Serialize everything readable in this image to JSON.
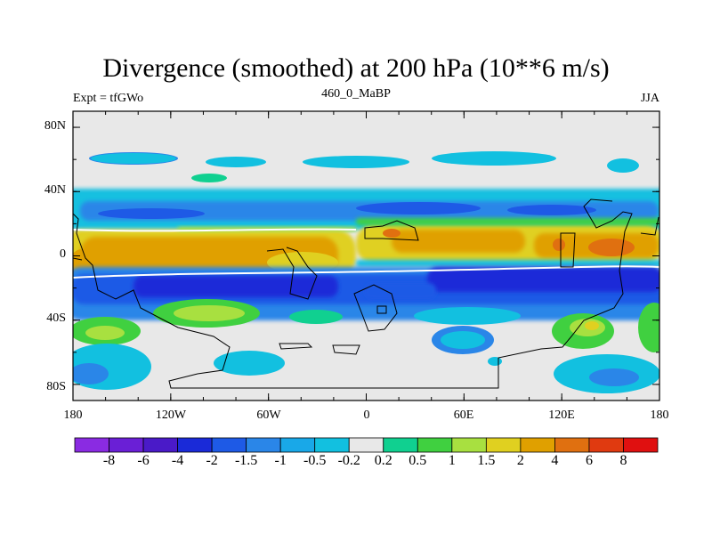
{
  "title": "Divergence (smoothed) at 200 hPa (10**6 m/s)",
  "subtitle_left": "Expt = tfGWo",
  "subtitle_center": "460_0_MaBP",
  "subtitle_right": "JJA",
  "chart_data": {
    "type": "filled-contour map",
    "variable": "Divergence (smoothed) at 200 hPa",
    "units": "10**6 m/s",
    "experiment": "tfGWo",
    "period": "460_0_MaBP",
    "season": "JJA",
    "x_axis": {
      "range": [
        -180,
        180
      ],
      "ticks": [
        -180,
        -120,
        -60,
        0,
        60,
        120,
        180
      ],
      "tick_labels": [
        "180",
        "120W",
        "60W",
        "0",
        "60E",
        "120E",
        "180"
      ]
    },
    "y_axis": {
      "range": [
        -90,
        90
      ],
      "ticks": [
        80,
        40,
        0,
        -40,
        -80
      ],
      "tick_labels": [
        "80N",
        "40N",
        "0",
        "40S",
        "80S"
      ]
    },
    "colorbar": {
      "levels": [
        "-8",
        "-6",
        "-4",
        "-2",
        "-1.5",
        "-1",
        "-0.5",
        "-0.2",
        "0.2",
        "0.5",
        "1",
        "1.5",
        "2",
        "4",
        "6",
        "8"
      ],
      "colors": [
        "#8a2be2",
        "#6a1fd6",
        "#4a1ac8",
        "#1a2ad8",
        "#1e5ae6",
        "#2a86e8",
        "#19a8e8",
        "#12c0e0",
        "#e8e8e8",
        "#10d090",
        "#40d040",
        "#a8e040",
        "#e0d020",
        "#e0a000",
        "#e07010",
        "#e03a10",
        "#e01010"
      ]
    },
    "bands": [
      {
        "lat_center": 65,
        "sign": "negative",
        "description": "weak convergence patches over high northern latitudes"
      },
      {
        "lat_center": 35,
        "sign": "negative",
        "description": "northern subtropical convergence belt"
      },
      {
        "lat_center": 5,
        "sign": "positive",
        "description": "tropical divergence band, max 2-4 over western Pacific and Asia"
      },
      {
        "lat_center": -22,
        "sign": "negative",
        "description": "strong southern subtropical convergence band, min -2 to -4"
      },
      {
        "lat_center": -45,
        "sign": "positive",
        "description": "southern midlatitude divergence patches"
      },
      {
        "lat_center": -75,
        "sign": "negative",
        "description": "high southern latitude convergence"
      }
    ]
  }
}
